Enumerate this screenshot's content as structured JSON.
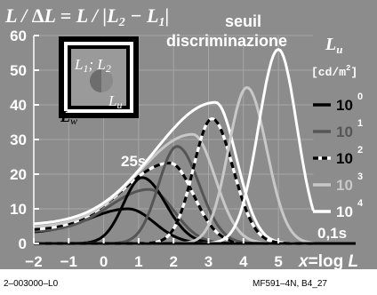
{
  "footer": {
    "left": "2–003000–L0",
    "right": "MF591–4N, B4_27"
  },
  "chart_data": {
    "type": "line",
    "title": "L / ΔL = L / |L2 − L1|",
    "title_parts": {
      "pre": "L / ",
      "delta": "Δ",
      "mid": "L = L / |L",
      "sub2": "2",
      "minus": " − L",
      "sub1": "1",
      "bar": "|"
    },
    "subtitle": "seuil",
    "subtitle2": "discriminazione",
    "xlabel": "x=log L",
    "xlabel_parts": {
      "x": "x",
      "eq": "=",
      "log": "log",
      "L": "L"
    },
    "x_ticks": [
      -2,
      -1,
      0,
      1,
      2,
      3,
      4,
      5
    ],
    "y_ticks": [
      0,
      10,
      20,
      30,
      40,
      50,
      60
    ],
    "x_tick_labels": [
      "−2",
      "−1",
      "0",
      "1",
      "2",
      "3",
      "4",
      "5"
    ],
    "xlim": [
      -2,
      6
    ],
    "ylim": [
      0,
      60
    ],
    "grid": true,
    "background": "#8c8c8c",
    "annotations": {
      "time_long": "25s",
      "time_short": "0,1s",
      "inset_label_top": "L1; L2",
      "inset_label_top_parts": {
        "a": "L",
        "a_sub": "1",
        "sep": "; ",
        "b": "L",
        "b_sub": "2"
      },
      "inset_label_u": {
        "a": "L",
        "sub": "u"
      },
      "inset_label_w": {
        "a": "L",
        "sub": "w"
      }
    },
    "legend": {
      "title": "Lu",
      "title_parts": {
        "a": "L",
        "sub": "u"
      },
      "unit": "[cd/m2]",
      "unit_parts": {
        "pre": "[cd/m",
        "sup": "2",
        "post": "]"
      },
      "placement": "right",
      "entries": [
        {
          "base": "10",
          "exp": "0",
          "color": "#000000",
          "style": "solid"
        },
        {
          "base": "10",
          "exp": "1",
          "color": "#555555",
          "style": "solid"
        },
        {
          "base": "10",
          "exp": "2",
          "color": "#000000",
          "style": "dashed"
        },
        {
          "base": "10",
          "exp": "3",
          "color": "#c8c8c8",
          "style": "solid"
        },
        {
          "base": "10",
          "exp": "4",
          "color": "#ffffff",
          "style": "solid"
        }
      ]
    },
    "series": [
      {
        "color": "#000000",
        "style": "solid",
        "adaptation": "25s",
        "peak_x": 0.7,
        "peak_y": 13,
        "left_width": 1.55,
        "right_width": 1.05,
        "y_at_left": 3
      },
      {
        "color": "#555555",
        "style": "solid",
        "adaptation": "25s",
        "peak_x": 1.3,
        "peak_y": 19,
        "left_width": 1.6,
        "right_width": 1.0,
        "y_at_left": 3.4
      },
      {
        "color": "#000000",
        "style": "dashed",
        "adaptation": "25s",
        "peak_x": 1.9,
        "peak_y": 27,
        "left_width": 1.9,
        "right_width": 0.95,
        "y_at_left": 3.8
      },
      {
        "color": "#c8c8c8",
        "style": "solid",
        "adaptation": "25s",
        "peak_x": 2.55,
        "peak_y": 36,
        "left_width": 2.15,
        "right_width": 0.9,
        "y_at_left": 4.5
      },
      {
        "color": "#ffffff",
        "style": "solid",
        "adaptation": "25s",
        "peak_x": 3.2,
        "peak_y": 46,
        "left_width": 2.45,
        "right_width": 0.85,
        "y_at_left": 5.3
      },
      {
        "color": "#000000",
        "style": "solid",
        "adaptation": "0,1s",
        "peak_x": 1.1,
        "peak_y": 19,
        "left_width": 0.75,
        "right_width": 0.95,
        "y_at_left": 0
      },
      {
        "color": "#555555",
        "style": "solid",
        "adaptation": "0,1s",
        "peak_x": 2.1,
        "peak_y": 28,
        "left_width": 0.75,
        "right_width": 0.9,
        "y_at_left": 0
      },
      {
        "color": "#000000",
        "style": "dashed",
        "adaptation": "0,1s",
        "peak_x": 3.1,
        "peak_y": 36,
        "left_width": 0.75,
        "right_width": 0.85,
        "y_at_left": 0
      },
      {
        "color": "#c8c8c8",
        "style": "solid",
        "adaptation": "0,1s",
        "peak_x": 4.1,
        "peak_y": 45,
        "left_width": 0.75,
        "right_width": 0.8,
        "y_at_left": 0
      },
      {
        "color": "#ffffff",
        "style": "solid",
        "adaptation": "0,1s",
        "peak_x": 5.0,
        "peak_y": 56,
        "left_width": 0.8,
        "right_width": 0.75,
        "y_at_left": 0
      }
    ]
  }
}
